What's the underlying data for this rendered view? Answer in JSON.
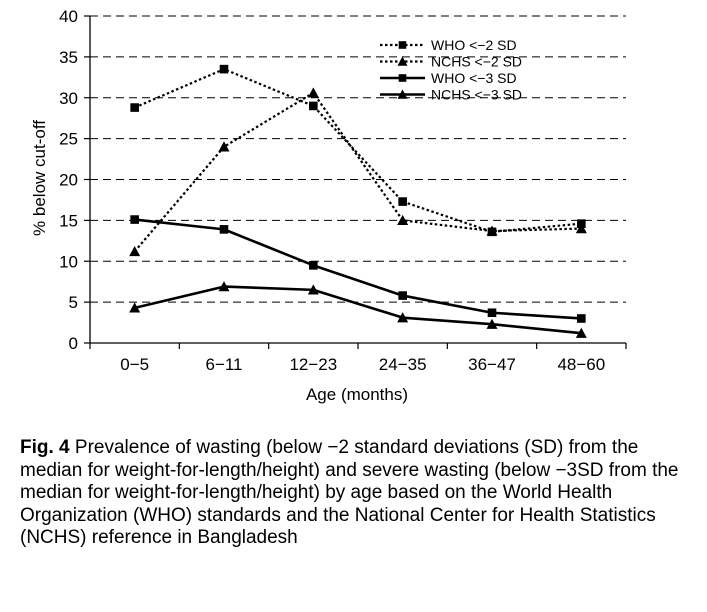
{
  "chart_data": {
    "type": "line",
    "title": "",
    "xlabel": "Age (months)",
    "ylabel": "% below cut-off",
    "categories": [
      "0−5",
      "6−11",
      "12−23",
      "24−35",
      "36−47",
      "48−60"
    ],
    "ylim": [
      0,
      40
    ],
    "yticks": [
      0,
      5,
      10,
      15,
      20,
      25,
      30,
      35,
      40
    ],
    "grid": "horizontal dashed",
    "legend_position": "top-right",
    "series": [
      {
        "name": "WHO <−2 SD",
        "marker": "square",
        "line": "dotted",
        "values": [
          28.8,
          33.5,
          29.0,
          17.3,
          13.6,
          14.6
        ]
      },
      {
        "name": "NCHS <−2 SD",
        "marker": "triangle",
        "line": "dotted",
        "values": [
          11.2,
          24.0,
          30.6,
          15.0,
          13.7,
          14.0
        ]
      },
      {
        "name": "WHO <−3 SD",
        "marker": "square",
        "line": "solid",
        "values": [
          15.1,
          13.9,
          9.5,
          5.8,
          3.7,
          3.0
        ]
      },
      {
        "name": "NCHS <−3 SD",
        "marker": "triangle",
        "line": "solid",
        "values": [
          4.3,
          6.9,
          6.5,
          3.1,
          2.3,
          1.2
        ]
      }
    ]
  },
  "caption": {
    "label": "Fig. 4",
    "text": " Prevalence of wasting (below −2 standard deviations (SD) from the median for weight-for-length/height) and severe wasting (below −3SD from the median for weight-for-length/height) by age based on the World Health Organization (WHO) standards and the National Center for Health Statistics (NCHS) reference in Bangladesh"
  }
}
